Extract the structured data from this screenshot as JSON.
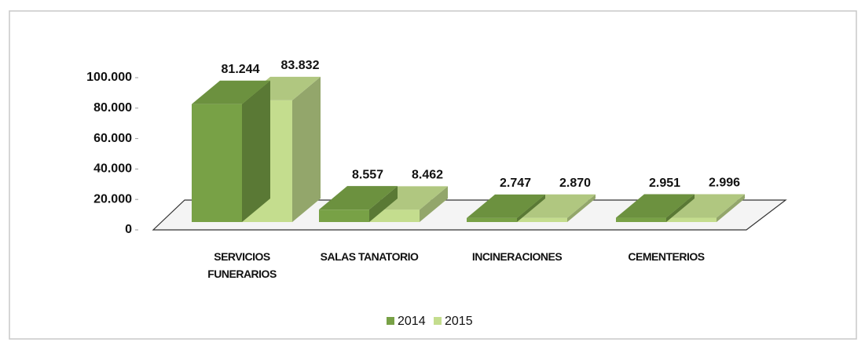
{
  "chart_data": {
    "type": "bar3d",
    "categories": [
      "SERVICIOS FUNERARIOS",
      "SALAS TANATORIO",
      "INCINERACIONES",
      "CEMENTERIOS"
    ],
    "series": [
      {
        "name": "2014",
        "color": "#78a146",
        "values": [
          81244,
          8557,
          2747,
          2951
        ],
        "value_labels": [
          "81.244",
          "8.557",
          "2.747",
          "2.951"
        ]
      },
      {
        "name": "2015",
        "color": "#c4dd8e",
        "values": [
          83832,
          8462,
          2870,
          2996
        ],
        "value_labels": [
          "83.832",
          "8.462",
          "2.870",
          "2.996"
        ]
      }
    ],
    "ylim": [
      0,
      100000
    ],
    "yticks": [
      0,
      {
        "value": 20000,
        "label": "20.000"
      },
      {
        "value": 40000,
        "label": "40.000"
      },
      {
        "value": 60000,
        "label": "60.000"
      },
      {
        "value": 80000,
        "label": "80.000"
      },
      {
        "value": 100000,
        "label": "100.000"
      }
    ],
    "legend": "bottom"
  }
}
